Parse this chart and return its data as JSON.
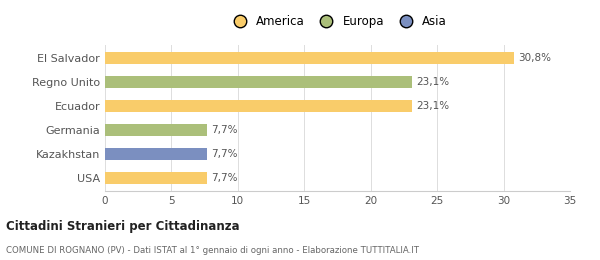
{
  "categories": [
    "El Salvador",
    "Regno Unito",
    "Ecuador",
    "Germania",
    "Kazakhstan",
    "USA"
  ],
  "values": [
    30.8,
    23.1,
    23.1,
    7.7,
    7.7,
    7.7
  ],
  "bar_colors": [
    "#F9CC6A",
    "#ABBF7A",
    "#F9CC6A",
    "#ABBF7A",
    "#7B8FC0",
    "#F9CC6A"
  ],
  "labels": [
    "30,8%",
    "23,1%",
    "23,1%",
    "7,7%",
    "7,7%",
    "7,7%"
  ],
  "legend_items": [
    {
      "label": "America",
      "color": "#F9CC6A"
    },
    {
      "label": "Europa",
      "color": "#ABBF7A"
    },
    {
      "label": "Asia",
      "color": "#7B8FC0"
    }
  ],
  "xlim": [
    0,
    35
  ],
  "xticks": [
    0,
    5,
    10,
    15,
    20,
    25,
    30,
    35
  ],
  "title_bold": "Cittadini Stranieri per Cittadinanza",
  "subtitle": "COMUNE DI ROGNANO (PV) - Dati ISTAT al 1° gennaio di ogni anno - Elaborazione TUTTITALIA.IT",
  "background_color": "#ffffff",
  "bar_height": 0.5,
  "label_fontsize": 7.5,
  "tick_fontsize": 7.5,
  "ylabel_fontsize": 8
}
